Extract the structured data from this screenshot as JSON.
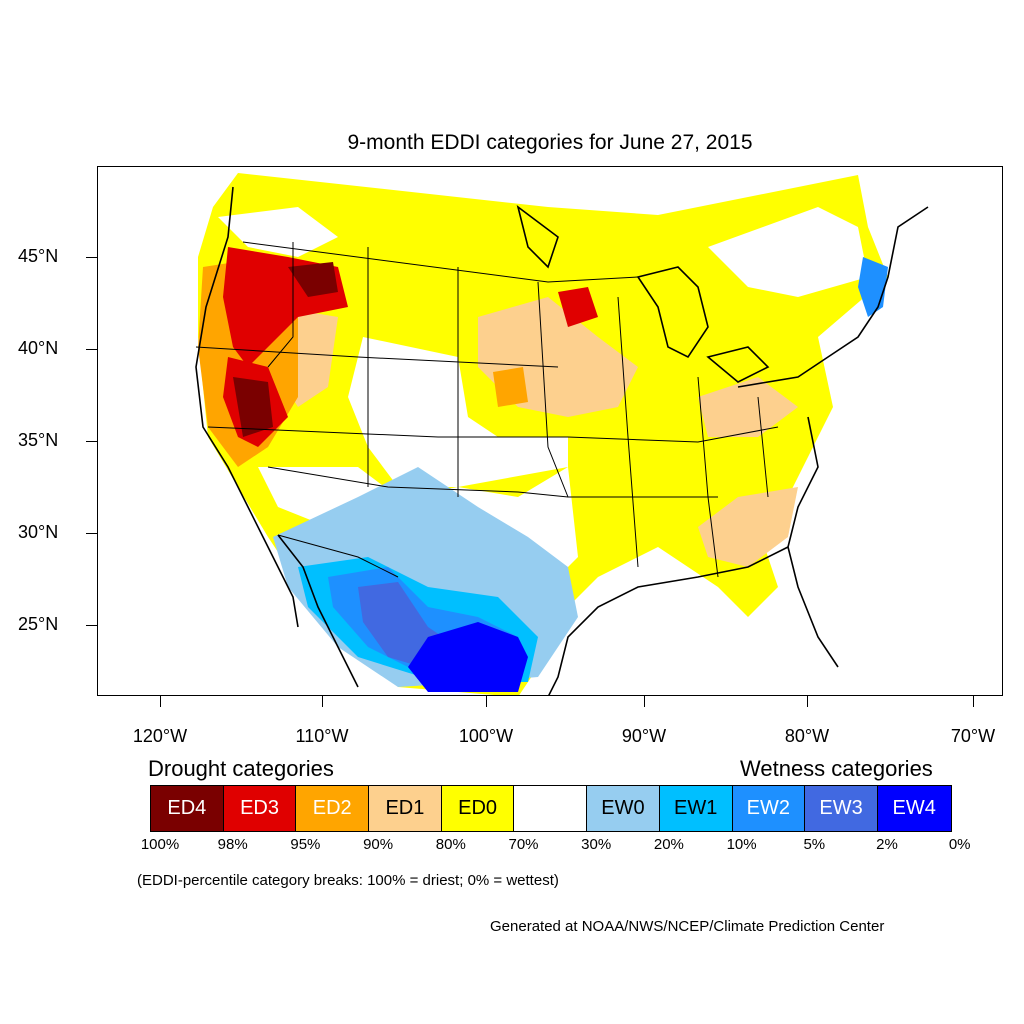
{
  "title": "9-month EDDI categories for June 27, 2015",
  "lat_labels": [
    "45°N",
    "40°N",
    "35°N",
    "30°N",
    "25°N"
  ],
  "lon_labels": [
    "120°W",
    "110°W",
    "100°W",
    "90°W",
    "80°W",
    "70°W"
  ],
  "legend": {
    "drought_title": "Drought categories",
    "wetness_title": "Wetness categories",
    "categories": [
      {
        "label": "ED4",
        "color": "#7a0000",
        "text_color": "#ffffff"
      },
      {
        "label": "ED3",
        "color": "#e00000",
        "text_color": "#ffffff"
      },
      {
        "label": "ED2",
        "color": "#ffa500",
        "text_color": "#ffffff"
      },
      {
        "label": "ED1",
        "color": "#fdd08e",
        "text_color": "#000000"
      },
      {
        "label": "ED0",
        "color": "#ffff00",
        "text_color": "#000000"
      },
      {
        "label": "",
        "color": "#ffffff",
        "text_color": "#000000"
      },
      {
        "label": "EW0",
        "color": "#96cdf0",
        "text_color": "#000000"
      },
      {
        "label": "EW1",
        "color": "#00bfff",
        "text_color": "#000000"
      },
      {
        "label": "EW2",
        "color": "#1e90ff",
        "text_color": "#ffffff"
      },
      {
        "label": "EW3",
        "color": "#4169e1",
        "text_color": "#ffffff"
      },
      {
        "label": "EW4",
        "color": "#0000ff",
        "text_color": "#ffffff"
      }
    ],
    "breaks": [
      "100%",
      "98%",
      "95%",
      "90%",
      "80%",
      "70%",
      "30%",
      "20%",
      "10%",
      "5%",
      "2%",
      "0%"
    ]
  },
  "note": "(EDDI-percentile category breaks: 100% = driest; 0% = wettest)",
  "credit": "Generated at NOAA/NWS/NCEP/Climate Prediction Center"
}
